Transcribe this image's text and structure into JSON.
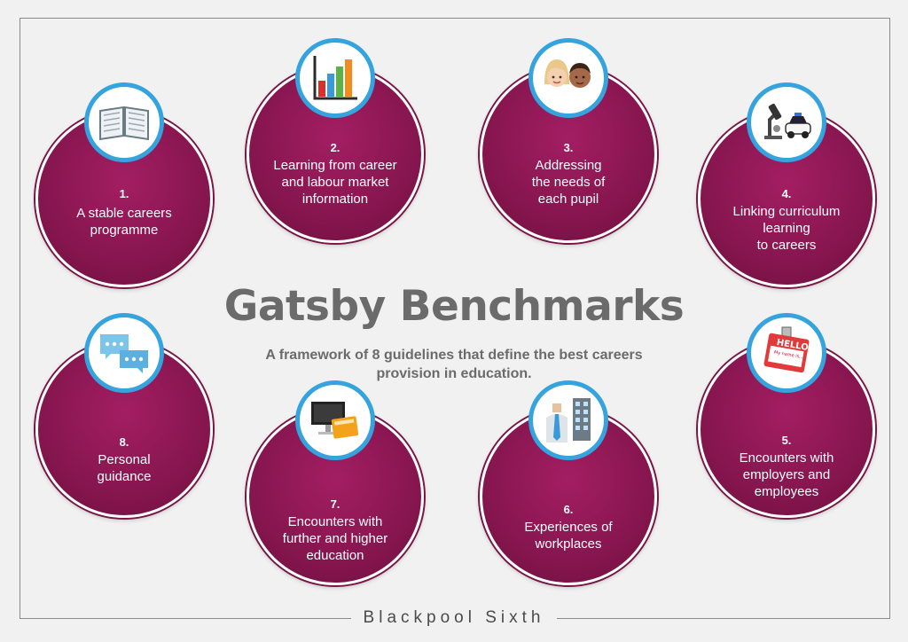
{
  "title": "Gatsby Benchmarks",
  "subtitle": "A framework of 8 guidelines that define the best careers provision in education.",
  "footer": "Blackpool Sixth",
  "benchmarks": [
    {
      "number": "1.",
      "lines": [
        "A stable careers",
        "programme"
      ],
      "icon": "book-icon"
    },
    {
      "number": "2.",
      "lines": [
        "Learning from career",
        "and labour market",
        "information"
      ],
      "icon": "bar-chart-icon"
    },
    {
      "number": "3.",
      "lines": [
        "Addressing",
        "the needs of",
        "each pupil"
      ],
      "icon": "pupils-faces-icon"
    },
    {
      "number": "4.",
      "lines": [
        "Linking curriculum",
        "learning",
        "to careers"
      ],
      "icon": "microscope-police-car-icon"
    },
    {
      "number": "5.",
      "lines": [
        "Encounters with",
        "employers and",
        "employees"
      ],
      "icon": "hello-name-badge-icon"
    },
    {
      "number": "6.",
      "lines": [
        "Experiences of",
        "workplaces"
      ],
      "icon": "office-worker-icon"
    },
    {
      "number": "7.",
      "lines": [
        "Encounters with",
        "further and higher",
        "education"
      ],
      "icon": "computer-book-icon"
    },
    {
      "number": "8.",
      "lines": [
        "Personal",
        "guidance"
      ],
      "icon": "speech-bubbles-icon"
    }
  ],
  "badge_text": {
    "hello": "HELLO",
    "name": "My name is..."
  },
  "colors": {
    "circle": "#84154d",
    "ring": "#34a3de",
    "title": "#6b6b6b",
    "background": "#f1f1f1"
  }
}
